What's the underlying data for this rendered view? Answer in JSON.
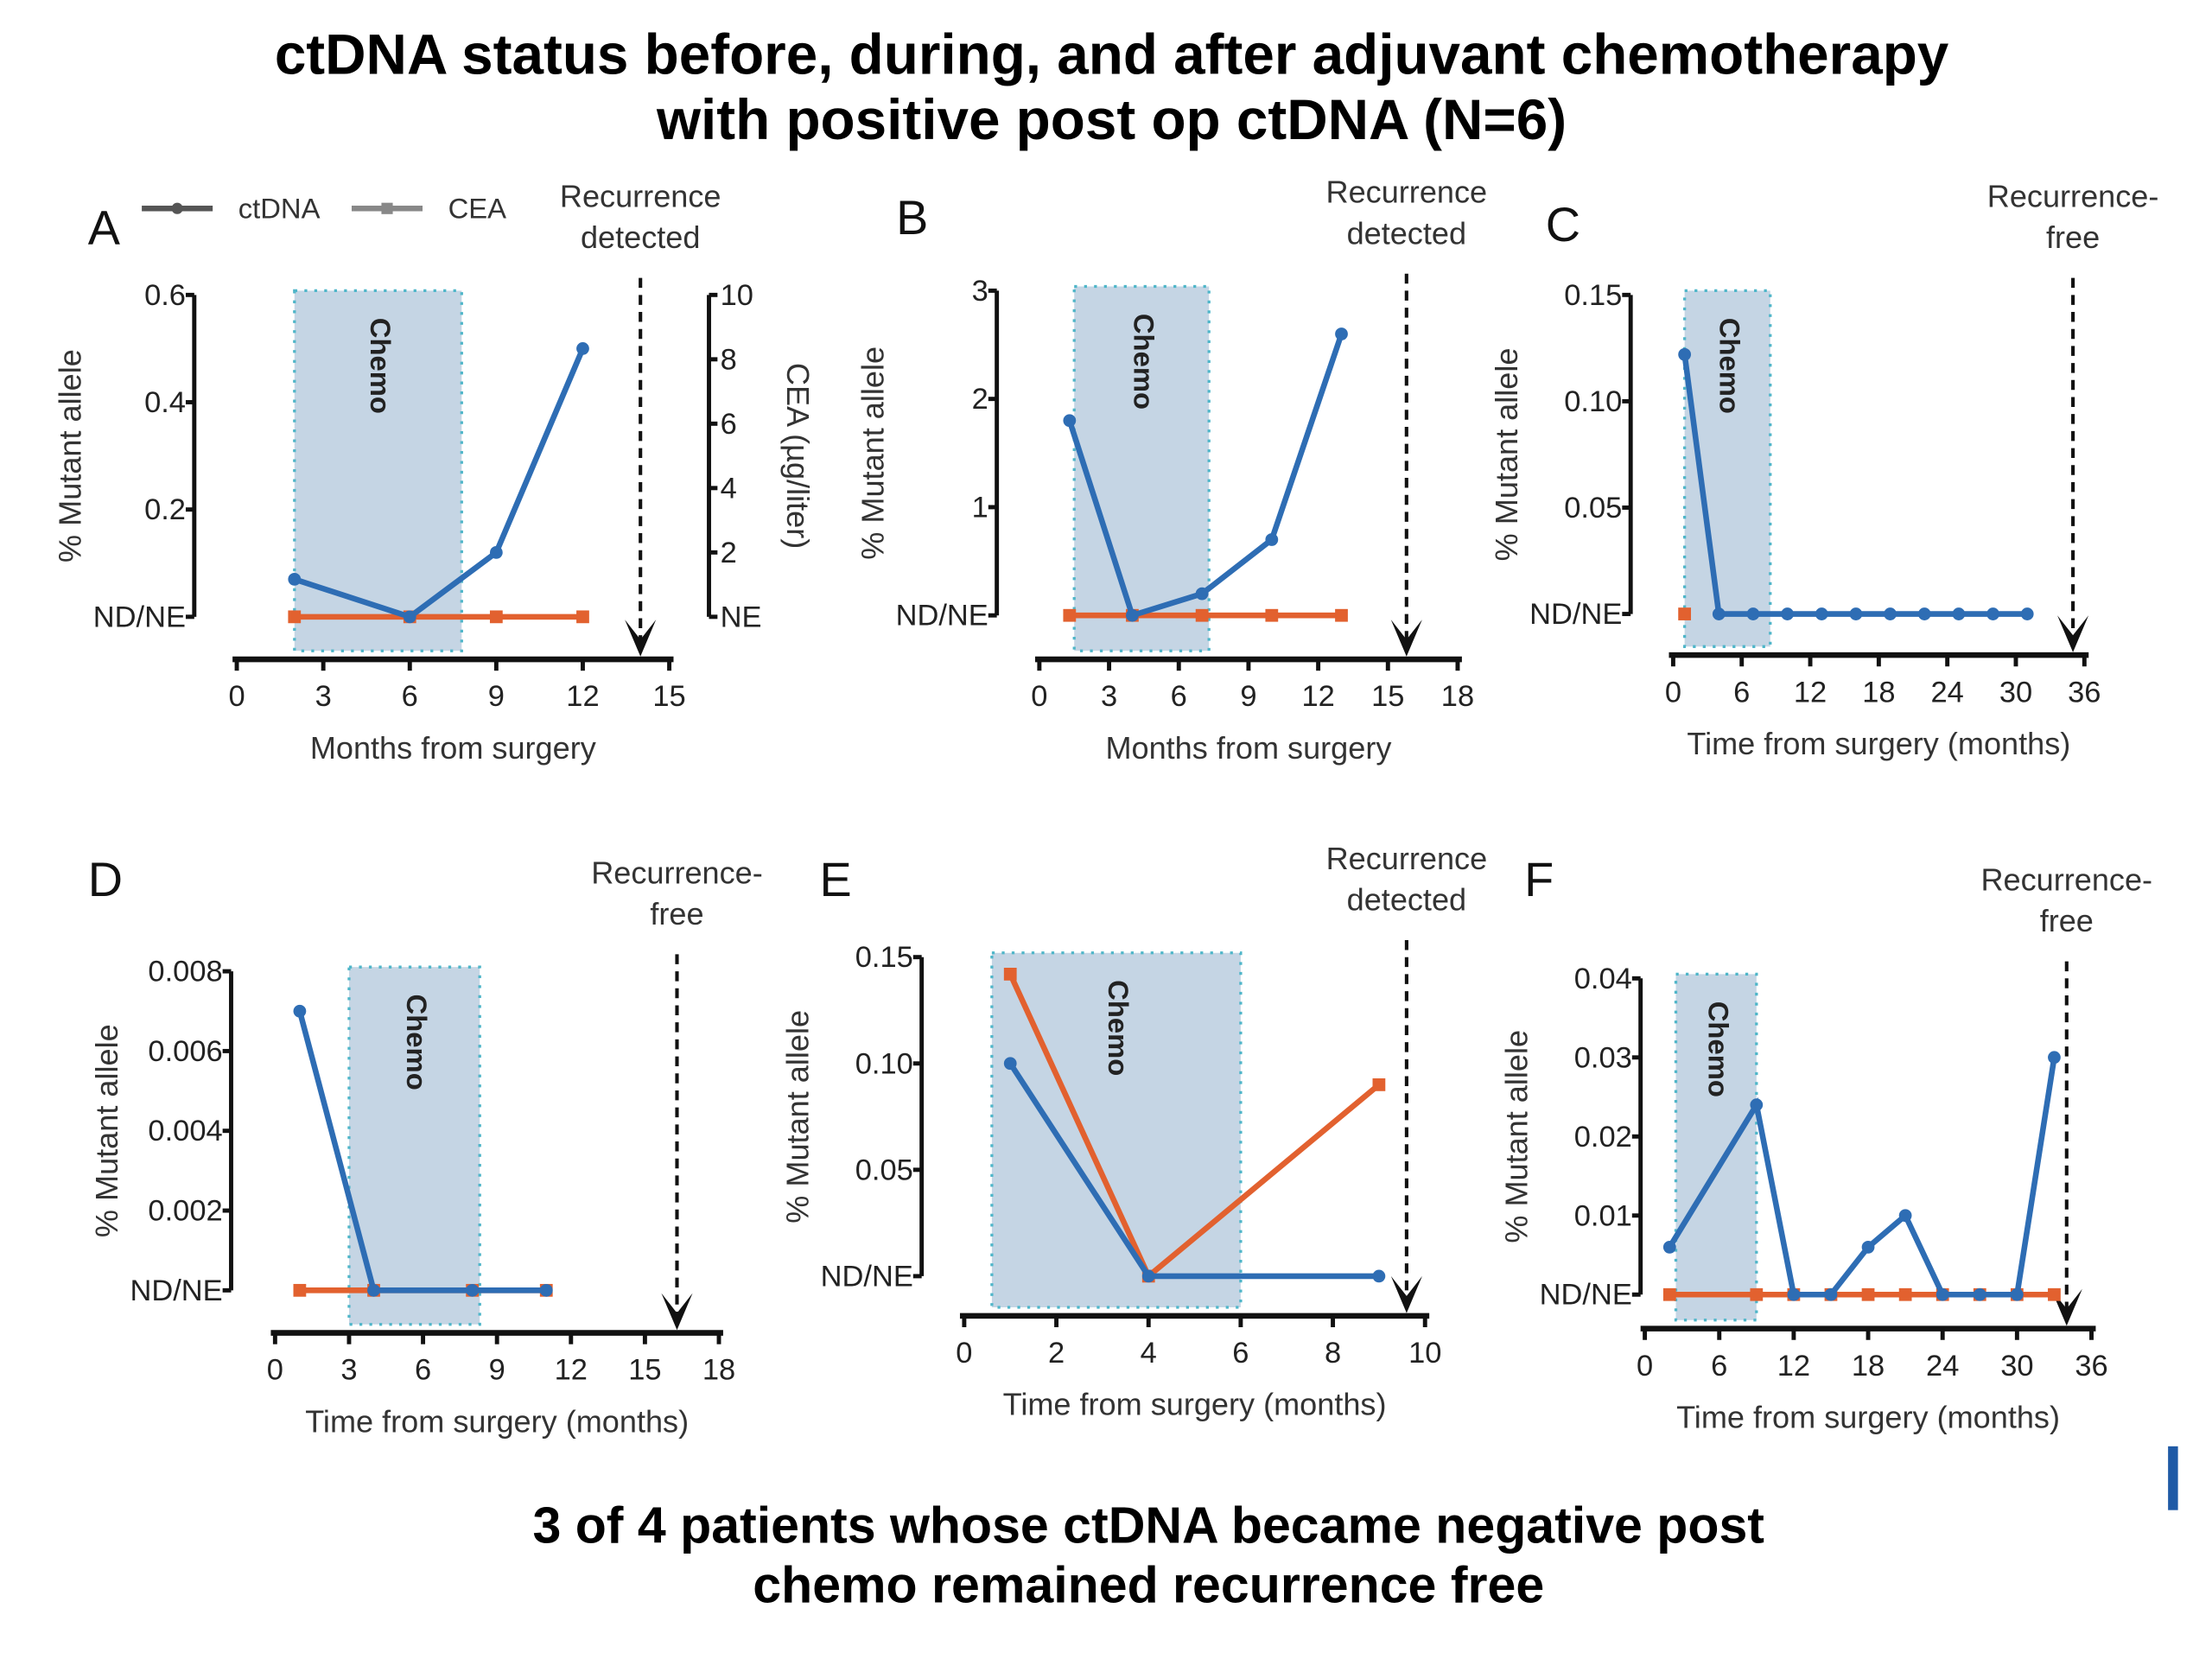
{
  "title_lines": [
    "ctDNA status before, during, and after adjuvant chemotherapy",
    "with positive post op ctDNA (N=6)"
  ],
  "footer_lines": [
    "3 of 4 patients whose ctDNA became negative post",
    "chemo remained recurrence free"
  ],
  "legend": [
    {
      "label": "ctDNA",
      "color": "#555555"
    },
    {
      "label": "CEA",
      "color": "#888888"
    }
  ],
  "colors": {
    "ctdna": "#2e6db4",
    "cea": "#e2612f",
    "chemo_fill": "#c5d5e4",
    "chemo_border": "#4fb6c9",
    "accent_bar": "#1f5aa6"
  },
  "chemo_label": "Chemo",
  "chart_data": [
    {
      "panel": "A",
      "type": "line",
      "xlabel": "Months from surgery",
      "ylabel": "% Mutant allele",
      "y2label": "CEA (µg/liter)",
      "xlim": [
        0,
        15
      ],
      "xticks": [
        0,
        3,
        6,
        9,
        12,
        15
      ],
      "ylim": [
        0,
        0.6
      ],
      "yticks": [
        "ND/NE",
        "0.2",
        "0.4",
        "0.6"
      ],
      "ytick_values": [
        0,
        0.2,
        0.4,
        0.6
      ],
      "y2ticks": [
        "NE",
        "2",
        "4",
        "6",
        "8",
        "10"
      ],
      "y2lim": [
        0,
        10
      ],
      "chemo": [
        2,
        7.8
      ],
      "event": {
        "x": 14,
        "label": [
          "Recurrence",
          "detected"
        ]
      },
      "series": [
        {
          "name": "ctDNA",
          "x": [
            2,
            6,
            9,
            12
          ],
          "y": [
            0.07,
            0,
            0.12,
            0.5
          ]
        },
        {
          "name": "CEA",
          "x": [
            2,
            6,
            9,
            12
          ],
          "y": [
            0,
            0,
            0,
            0
          ]
        }
      ]
    },
    {
      "panel": "B",
      "type": "line",
      "xlabel": "Months from surgery",
      "ylabel": "% Mutant allele",
      "xlim": [
        0,
        18
      ],
      "xticks": [
        0,
        3,
        6,
        9,
        12,
        15,
        18
      ],
      "ylim": [
        0,
        3
      ],
      "yticks": [
        "ND/NE",
        "1",
        "2",
        "3"
      ],
      "ytick_values": [
        0,
        1,
        2,
        3
      ],
      "chemo": [
        1.5,
        7.3
      ],
      "event": {
        "x": 15.8,
        "label": [
          "Recurrence",
          "detected"
        ]
      },
      "series": [
        {
          "name": "ctDNA",
          "x": [
            1.3,
            4,
            7,
            10,
            13
          ],
          "y": [
            1.8,
            0,
            0.2,
            0.7,
            2.6
          ]
        },
        {
          "name": "CEA",
          "x": [
            1.3,
            4,
            7,
            10,
            13
          ],
          "y": [
            0,
            0,
            0,
            0,
            0
          ]
        }
      ]
    },
    {
      "panel": "C",
      "type": "line",
      "xlabel": "Time from surgery (months)",
      "ylabel": "% Mutant allele",
      "xlim": [
        0,
        36
      ],
      "xticks": [
        0,
        6,
        12,
        18,
        24,
        30,
        36
      ],
      "ylim": [
        0,
        0.15
      ],
      "yticks": [
        "ND/NE",
        "0.05",
        "0.10",
        "0.15"
      ],
      "ytick_values": [
        0,
        0.05,
        0.1,
        0.15
      ],
      "chemo": [
        1,
        8.5
      ],
      "event": {
        "x": 35,
        "label": [
          "Recurrence-",
          "free"
        ]
      },
      "series": [
        {
          "name": "ctDNA",
          "x": [
            1,
            4,
            7,
            10,
            13,
            16,
            19,
            22,
            25,
            28,
            31
          ],
          "y": [
            0.122,
            0,
            0,
            0,
            0,
            0,
            0,
            0,
            0,
            0,
            0
          ]
        },
        {
          "name": "CEA",
          "x": [
            1
          ],
          "y": [
            0
          ]
        }
      ]
    },
    {
      "panel": "D",
      "type": "line",
      "xlabel": "Time from surgery (months)",
      "ylabel": "% Mutant allele",
      "xlim": [
        0,
        18
      ],
      "xticks": [
        0,
        3,
        6,
        9,
        12,
        15,
        18
      ],
      "ylim": [
        0,
        0.008
      ],
      "yticks": [
        "ND/NE",
        "0.002",
        "0.004",
        "0.006",
        "0.008"
      ],
      "ytick_values": [
        0,
        0.002,
        0.004,
        0.006,
        0.008
      ],
      "chemo": [
        3,
        8.3
      ],
      "event": {
        "x": 16.3,
        "label": [
          "Recurrence-",
          "free"
        ]
      },
      "series": [
        {
          "name": "ctDNA",
          "x": [
            1,
            4,
            8,
            11
          ],
          "y": [
            0.007,
            0,
            0,
            0
          ]
        },
        {
          "name": "CEA",
          "x": [
            1,
            4,
            8,
            11
          ],
          "y": [
            0,
            0,
            0,
            0
          ]
        }
      ]
    },
    {
      "panel": "E",
      "type": "line",
      "xlabel": "Time from surgery (months)",
      "ylabel": "% Mutant allele",
      "xlim": [
        0,
        10
      ],
      "xticks": [
        0,
        2,
        4,
        6,
        8,
        10
      ],
      "ylim": [
        0,
        0.15
      ],
      "yticks": [
        "ND/NE",
        "0.05",
        "0.10",
        "0.15"
      ],
      "ytick_values": [
        0,
        0.05,
        0.1,
        0.15
      ],
      "chemo": [
        0.6,
        6
      ],
      "event": {
        "x": 9.6,
        "label": [
          "Recurrence",
          "detected"
        ]
      },
      "series": [
        {
          "name": "ctDNA",
          "x": [
            1,
            4,
            9
          ],
          "y": [
            0.1,
            0,
            0
          ]
        },
        {
          "name": "CEA",
          "x": [
            1,
            4,
            9
          ],
          "y": [
            0.142,
            0,
            0.09
          ]
        }
      ]
    },
    {
      "panel": "F",
      "type": "line",
      "xlabel": "Time from surgery (months)",
      "ylabel": "% Mutant allele",
      "xlim": [
        0,
        36
      ],
      "xticks": [
        0,
        6,
        12,
        18,
        24,
        30,
        36
      ],
      "ylim": [
        0,
        0.04
      ],
      "yticks": [
        "ND/NE",
        "0.01",
        "0.02",
        "0.03",
        "0.04"
      ],
      "ytick_values": [
        0,
        0.01,
        0.02,
        0.03,
        0.04
      ],
      "chemo": [
        2.5,
        9
      ],
      "event": {
        "x": 34,
        "label": [
          "Recurrence-",
          "free"
        ]
      },
      "series": [
        {
          "name": "ctDNA",
          "x": [
            2,
            9,
            12,
            15,
            18,
            21,
            24,
            27,
            30,
            33
          ],
          "y": [
            0.006,
            0.024,
            0,
            0,
            0.006,
            0.01,
            0,
            0,
            0,
            0.03
          ]
        },
        {
          "name": "CEA",
          "x": [
            2,
            9,
            12,
            15,
            18,
            21,
            24,
            27,
            30,
            33
          ],
          "y": [
            0,
            0,
            0,
            0,
            0,
            0,
            0,
            0,
            0,
            0
          ]
        }
      ]
    }
  ]
}
